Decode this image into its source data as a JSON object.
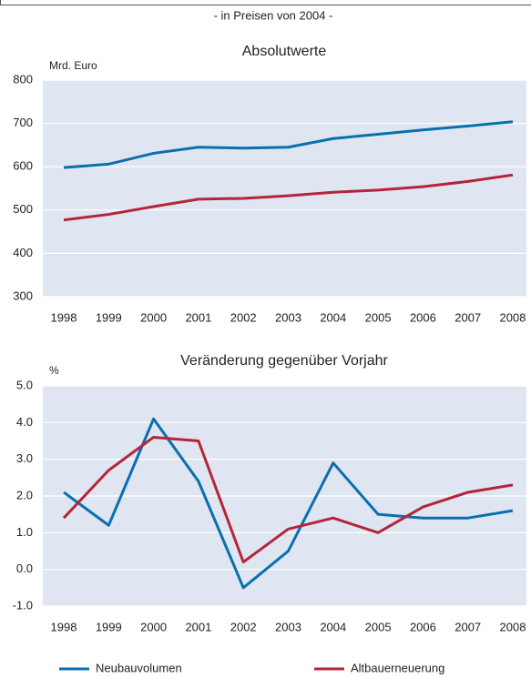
{
  "chart_data": [
    {
      "type": "line",
      "subtitle": "- in Preisen von 2004 -",
      "title": "Absolutwerte",
      "ylabel": "Mrd. Euro",
      "categories": [
        "1998",
        "1999",
        "2000",
        "2001",
        "2002",
        "2003",
        "2004",
        "2005",
        "2006",
        "2007",
        "2008"
      ],
      "series": [
        {
          "color": "#0a6fae",
          "values": [
            598,
            606,
            631,
            645,
            643,
            645,
            665,
            675,
            685,
            694,
            704
          ]
        },
        {
          "color": "#b5253a",
          "values": [
            477,
            490,
            508,
            525,
            527,
            533,
            541,
            546,
            554,
            566,
            581
          ]
        }
      ],
      "ylim": [
        300,
        800
      ],
      "yticks": [
        300,
        400,
        500,
        600,
        700,
        800
      ],
      "grid": true
    },
    {
      "type": "line",
      "title": "Veränderung gegenüber Vorjahr",
      "ylabel": "%",
      "categories": [
        "1998",
        "1999",
        "2000",
        "2001",
        "2002",
        "2003",
        "2004",
        "2005",
        "2006",
        "2007",
        "2008"
      ],
      "series": [
        {
          "name": "Neubauvolumen",
          "color": "#0a6fae",
          "values": [
            2.1,
            1.2,
            4.1,
            2.4,
            -0.5,
            0.5,
            2.9,
            1.5,
            1.4,
            1.4,
            1.6
          ]
        },
        {
          "name": "Altbauerneuerung",
          "color": "#b5253a",
          "values": [
            1.4,
            2.7,
            3.6,
            3.5,
            0.2,
            1.1,
            1.4,
            1.0,
            1.7,
            2.1,
            2.3
          ]
        }
      ],
      "ylim": [
        -1,
        5
      ],
      "yticks": [
        {
          "value": -1,
          "label": "-1.0"
        },
        {
          "value": 0,
          "label": "0.0"
        },
        {
          "value": 1,
          "label": "1.0"
        },
        {
          "value": 2,
          "label": "2.0"
        },
        {
          "value": 3,
          "label": "3.0"
        },
        {
          "value": 4,
          "label": "4.0"
        },
        {
          "value": 5,
          "label": "5.0"
        }
      ],
      "grid": true
    }
  ]
}
